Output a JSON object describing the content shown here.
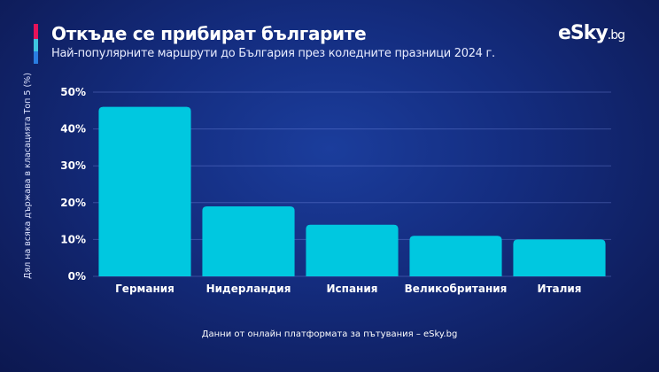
{
  "header": {
    "title": "Откъде се прибират българите",
    "subtitle": "Най-популярните маршрути до България през коледните празници 2024 г.",
    "accent_colors": [
      "#e6135a",
      "#3ec5e0",
      "#2a7de1"
    ]
  },
  "logo": {
    "main": "eSky",
    "suffix": ".bg"
  },
  "footer": "Данни от онлайн платформата за пътувания – eSky.bg",
  "chart_data": {
    "type": "bar",
    "categories": [
      "Германия",
      "Нидерландия",
      "Испания",
      "Великобритания",
      "Италия"
    ],
    "values": [
      46,
      19,
      14,
      11,
      10
    ],
    "ylabel": "Дял на всяка държава в класацията Топ 5 (%)",
    "ylim": [
      0,
      50
    ],
    "yticks": [
      "0%",
      "10%",
      "20%",
      "30%",
      "40%",
      "50%"
    ],
    "grid": true,
    "bar_color": "#00c8e0"
  }
}
